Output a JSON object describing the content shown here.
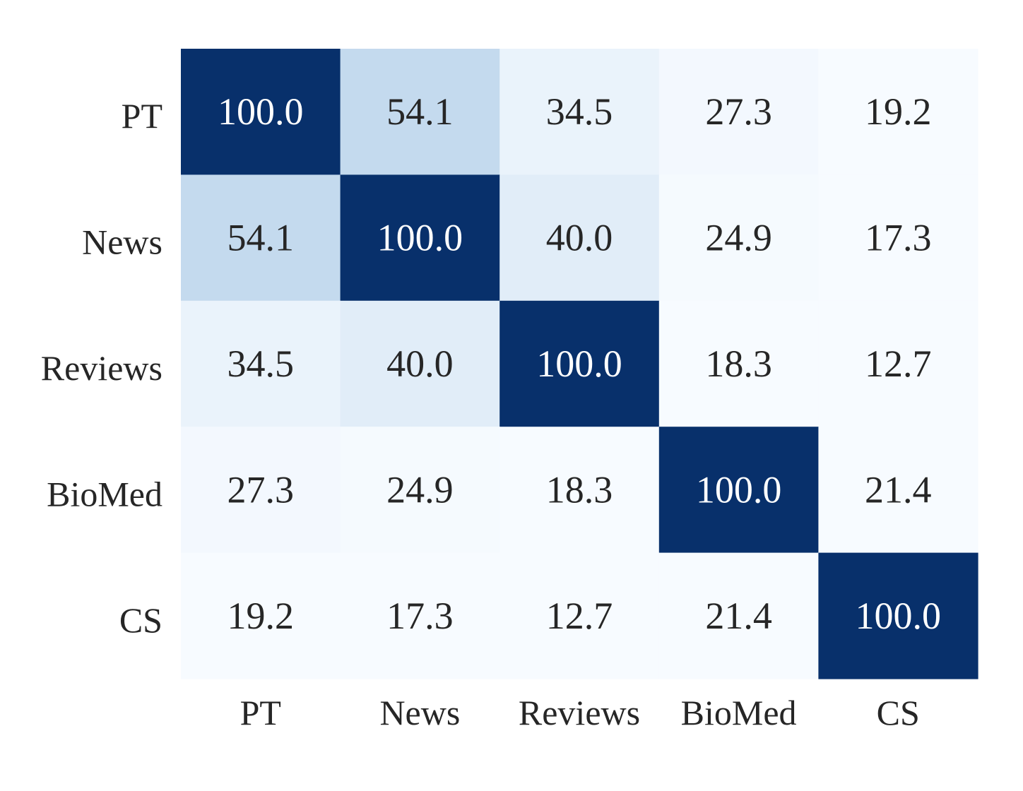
{
  "chart_data": {
    "type": "heatmap",
    "title": "",
    "xlabel": "",
    "ylabel": "",
    "x_categories": [
      "PT",
      "News",
      "Reviews",
      "BioMed",
      "CS"
    ],
    "y_categories": [
      "PT",
      "News",
      "Reviews",
      "BioMed",
      "CS"
    ],
    "values": [
      [
        100.0,
        54.1,
        34.5,
        27.3,
        19.2
      ],
      [
        54.1,
        100.0,
        40.0,
        24.9,
        17.3
      ],
      [
        34.5,
        40.0,
        100.0,
        18.3,
        12.7
      ],
      [
        27.3,
        24.9,
        18.3,
        100.0,
        21.4
      ],
      [
        19.2,
        17.3,
        12.7,
        21.4,
        100.0
      ]
    ],
    "value_format": "0.0",
    "colormap": "Blues",
    "color_range": [
      0,
      100
    ],
    "colorbar": false,
    "grid": false
  },
  "colors": {
    "text_dark": "#262626",
    "text_light": "#ffffff",
    "background": "#ffffff"
  }
}
